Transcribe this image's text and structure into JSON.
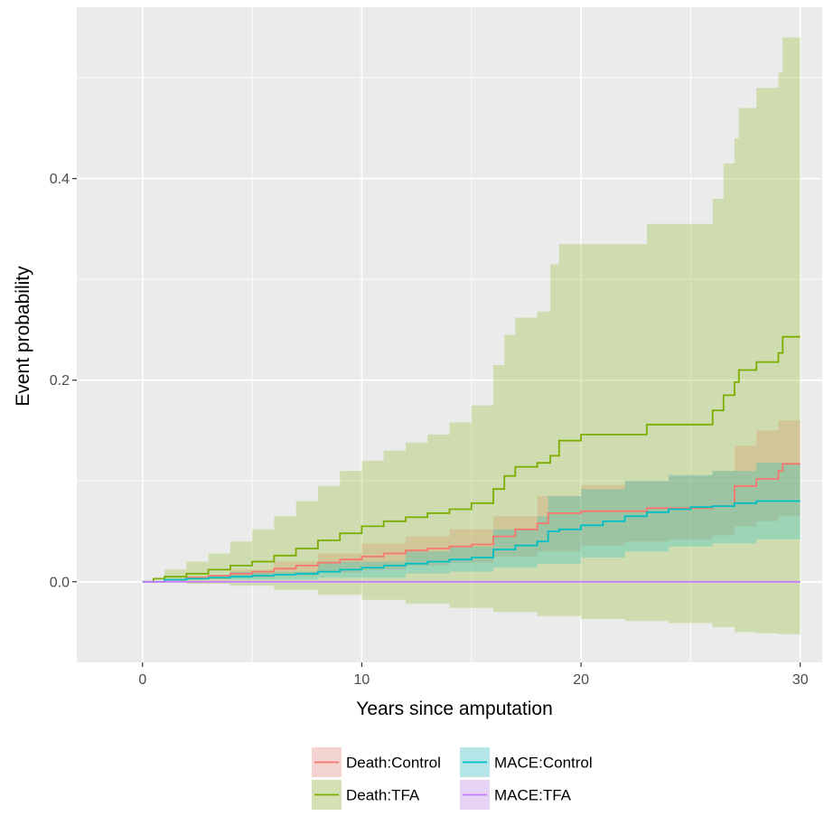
{
  "chart_data": {
    "type": "line",
    "title": "",
    "xlabel": "Years since amputation",
    "ylabel": "Event probability",
    "xlim": [
      -3,
      31
    ],
    "ylim": [
      -0.08,
      0.57
    ],
    "x_ticks": [
      0,
      10,
      20,
      30
    ],
    "x_tick_labels": [
      "0",
      "10",
      "20",
      "30"
    ],
    "y_ticks": [
      0.0,
      0.2,
      0.4
    ],
    "y_tick_labels": [
      "0.0",
      "0.2",
      "0.4"
    ],
    "grid": true,
    "legend_position": "bottom",
    "series": [
      {
        "name": "Death:Control",
        "color": "#F8766D",
        "points": [
          [
            0,
            0
          ],
          [
            1,
            0.002
          ],
          [
            2,
            0.004
          ],
          [
            3,
            0.006
          ],
          [
            4,
            0.008
          ],
          [
            5,
            0.01
          ],
          [
            6,
            0.013
          ],
          [
            7,
            0.016
          ],
          [
            8,
            0.019
          ],
          [
            9,
            0.022
          ],
          [
            10,
            0.025
          ],
          [
            11,
            0.028
          ],
          [
            12,
            0.031
          ],
          [
            13,
            0.033
          ],
          [
            14,
            0.035
          ],
          [
            15,
            0.037
          ],
          [
            16,
            0.045
          ],
          [
            17,
            0.052
          ],
          [
            18,
            0.058
          ],
          [
            18.5,
            0.068
          ],
          [
            20,
            0.07
          ],
          [
            22,
            0.07
          ],
          [
            23,
            0.073
          ],
          [
            25,
            0.073
          ],
          [
            26,
            0.075
          ],
          [
            27,
            0.095
          ],
          [
            28,
            0.102
          ],
          [
            29,
            0.11
          ],
          [
            29.2,
            0.117
          ],
          [
            30,
            0.117
          ]
        ],
        "lower": [
          [
            0,
            0
          ],
          [
            2,
            0.002
          ],
          [
            4,
            0.004
          ],
          [
            6,
            0.006
          ],
          [
            8,
            0.009
          ],
          [
            10,
            0.012
          ],
          [
            12,
            0.016
          ],
          [
            14,
            0.019
          ],
          [
            16,
            0.025
          ],
          [
            18,
            0.03
          ],
          [
            20,
            0.036
          ],
          [
            22,
            0.04
          ],
          [
            24,
            0.042
          ],
          [
            26,
            0.046
          ],
          [
            27,
            0.055
          ],
          [
            28,
            0.06
          ],
          [
            29,
            0.065
          ],
          [
            30,
            0.067
          ]
        ],
        "upper": [
          [
            0,
            0
          ],
          [
            2,
            0.006
          ],
          [
            4,
            0.012
          ],
          [
            6,
            0.02
          ],
          [
            8,
            0.028
          ],
          [
            10,
            0.038
          ],
          [
            12,
            0.045
          ],
          [
            14,
            0.052
          ],
          [
            16,
            0.065
          ],
          [
            18,
            0.085
          ],
          [
            20,
            0.096
          ],
          [
            22,
            0.1
          ],
          [
            24,
            0.105
          ],
          [
            26,
            0.11
          ],
          [
            27,
            0.135
          ],
          [
            28,
            0.15
          ],
          [
            29,
            0.16
          ],
          [
            30,
            0.168
          ]
        ]
      },
      {
        "name": "Death:TFA",
        "color": "#7CAE00",
        "points": [
          [
            0,
            0
          ],
          [
            0.5,
            0.003
          ],
          [
            1,
            0.005
          ],
          [
            2,
            0.008
          ],
          [
            3,
            0.012
          ],
          [
            4,
            0.016
          ],
          [
            5,
            0.02
          ],
          [
            6,
            0.026
          ],
          [
            7,
            0.033
          ],
          [
            8,
            0.041
          ],
          [
            9,
            0.048
          ],
          [
            10,
            0.055
          ],
          [
            11,
            0.06
          ],
          [
            12,
            0.064
          ],
          [
            13,
            0.068
          ],
          [
            14,
            0.072
          ],
          [
            15,
            0.078
          ],
          [
            16,
            0.092
          ],
          [
            16.5,
            0.105
          ],
          [
            17,
            0.114
          ],
          [
            18,
            0.118
          ],
          [
            18.6,
            0.125
          ],
          [
            19,
            0.14
          ],
          [
            20,
            0.146
          ],
          [
            22,
            0.146
          ],
          [
            23,
            0.156
          ],
          [
            24,
            0.156
          ],
          [
            25,
            0.156
          ],
          [
            26,
            0.17
          ],
          [
            26.5,
            0.185
          ],
          [
            27,
            0.198
          ],
          [
            27.2,
            0.21
          ],
          [
            28,
            0.218
          ],
          [
            29,
            0.227
          ],
          [
            29.2,
            0.243
          ],
          [
            30,
            0.243
          ]
        ],
        "lower": [
          [
            0,
            0
          ],
          [
            2,
            -0.002
          ],
          [
            4,
            -0.004
          ],
          [
            6,
            -0.008
          ],
          [
            8,
            -0.013
          ],
          [
            10,
            -0.018
          ],
          [
            12,
            -0.022
          ],
          [
            14,
            -0.026
          ],
          [
            16,
            -0.03
          ],
          [
            18,
            -0.034
          ],
          [
            20,
            -0.037
          ],
          [
            22,
            -0.039
          ],
          [
            24,
            -0.041
          ],
          [
            26,
            -0.045
          ],
          [
            27,
            -0.05
          ],
          [
            28,
            -0.051
          ],
          [
            29,
            -0.052
          ],
          [
            30,
            -0.052
          ]
        ],
        "upper": [
          [
            0,
            0
          ],
          [
            1,
            0.012
          ],
          [
            2,
            0.02
          ],
          [
            3,
            0.028
          ],
          [
            4,
            0.04
          ],
          [
            5,
            0.052
          ],
          [
            6,
            0.065
          ],
          [
            7,
            0.08
          ],
          [
            8,
            0.095
          ],
          [
            9,
            0.11
          ],
          [
            10,
            0.12
          ],
          [
            11,
            0.13
          ],
          [
            12,
            0.138
          ],
          [
            13,
            0.146
          ],
          [
            14,
            0.158
          ],
          [
            15,
            0.175
          ],
          [
            16,
            0.215
          ],
          [
            16.5,
            0.245
          ],
          [
            17,
            0.262
          ],
          [
            18,
            0.268
          ],
          [
            18.6,
            0.315
          ],
          [
            19,
            0.335
          ],
          [
            22,
            0.335
          ],
          [
            23,
            0.355
          ],
          [
            25,
            0.355
          ],
          [
            26,
            0.38
          ],
          [
            26.5,
            0.415
          ],
          [
            27,
            0.44
          ],
          [
            27.2,
            0.47
          ],
          [
            28,
            0.49
          ],
          [
            29,
            0.505
          ],
          [
            29.2,
            0.54
          ],
          [
            30,
            0.54
          ]
        ]
      },
      {
        "name": "MACE:Control",
        "color": "#00BFC4",
        "points": [
          [
            0,
            0
          ],
          [
            1,
            0.002
          ],
          [
            2,
            0.003
          ],
          [
            3,
            0.004
          ],
          [
            4,
            0.005
          ],
          [
            5,
            0.006
          ],
          [
            6,
            0.007
          ],
          [
            7,
            0.008
          ],
          [
            8,
            0.01
          ],
          [
            9,
            0.012
          ],
          [
            10,
            0.014
          ],
          [
            11,
            0.016
          ],
          [
            12,
            0.018
          ],
          [
            13,
            0.02
          ],
          [
            14,
            0.022
          ],
          [
            15,
            0.024
          ],
          [
            16,
            0.032
          ],
          [
            17,
            0.036
          ],
          [
            18,
            0.04
          ],
          [
            18.5,
            0.05
          ],
          [
            19,
            0.052
          ],
          [
            20,
            0.056
          ],
          [
            21,
            0.06
          ],
          [
            22,
            0.065
          ],
          [
            23,
            0.069
          ],
          [
            24,
            0.072
          ],
          [
            25,
            0.074
          ],
          [
            26,
            0.075
          ],
          [
            27,
            0.078
          ],
          [
            28,
            0.08
          ],
          [
            29,
            0.08
          ],
          [
            30,
            0.08
          ]
        ],
        "lower": [
          [
            0,
            0
          ],
          [
            4,
            0.002
          ],
          [
            8,
            0.004
          ],
          [
            12,
            0.008
          ],
          [
            14,
            0.01
          ],
          [
            16,
            0.014
          ],
          [
            18,
            0.018
          ],
          [
            20,
            0.024
          ],
          [
            22,
            0.03
          ],
          [
            24,
            0.035
          ],
          [
            26,
            0.038
          ],
          [
            28,
            0.042
          ],
          [
            30,
            0.043
          ]
        ],
        "upper": [
          [
            0,
            0
          ],
          [
            4,
            0.01
          ],
          [
            8,
            0.02
          ],
          [
            12,
            0.03
          ],
          [
            14,
            0.035
          ],
          [
            16,
            0.052
          ],
          [
            18,
            0.065
          ],
          [
            18.5,
            0.085
          ],
          [
            20,
            0.092
          ],
          [
            22,
            0.1
          ],
          [
            24,
            0.106
          ],
          [
            26,
            0.11
          ],
          [
            28,
            0.118
          ],
          [
            30,
            0.118
          ]
        ]
      },
      {
        "name": "MACE:TFA",
        "color": "#C77CFF",
        "points": [
          [
            0,
            0
          ],
          [
            30,
            0
          ]
        ],
        "lower": [
          [
            0,
            0
          ],
          [
            30,
            0
          ]
        ],
        "upper": [
          [
            0,
            0
          ],
          [
            30,
            0
          ]
        ]
      }
    ]
  }
}
